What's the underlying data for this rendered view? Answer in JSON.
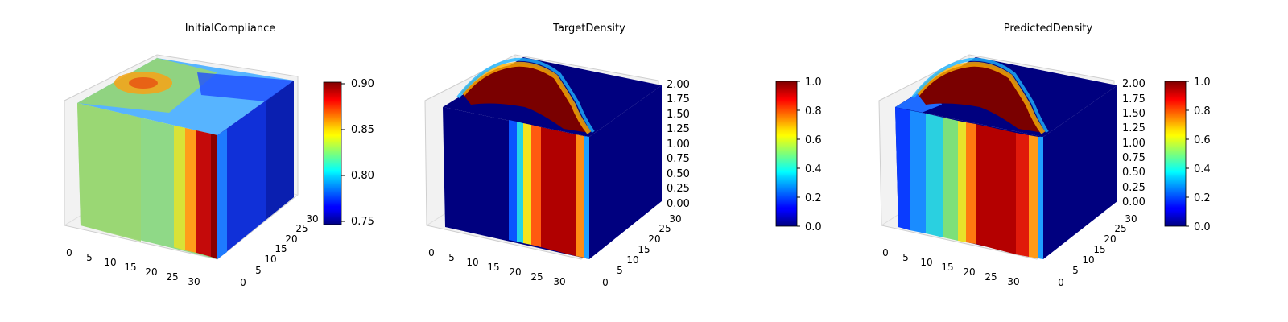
{
  "chart_data": [
    {
      "type": "heatmap",
      "subtype": "3d-voxel",
      "title": "InitialCompliance",
      "x_ticks": [
        "0",
        "5",
        "10",
        "15",
        "20",
        "25",
        "30"
      ],
      "y_ticks": [
        "0",
        "5",
        "10",
        "15",
        "20",
        "25",
        "30"
      ],
      "z_ticks": [],
      "colorbar": {
        "ticks": [
          "0.75",
          "0.80",
          "0.85",
          "0.90"
        ],
        "min": 0.745,
        "max": 0.9,
        "colormap": "jet"
      }
    },
    {
      "type": "heatmap",
      "subtype": "3d-voxel",
      "title": "TargetDensity",
      "x_ticks": [
        "0",
        "5",
        "10",
        "15",
        "20",
        "25",
        "30"
      ],
      "y_ticks": [
        "0",
        "5",
        "10",
        "15",
        "20",
        "25",
        "30"
      ],
      "z_ticks": [
        "0.00",
        "0.25",
        "0.50",
        "0.75",
        "1.00",
        "1.25",
        "1.50",
        "1.75",
        "2.00"
      ],
      "colorbar": {
        "ticks": [
          "0.0",
          "0.2",
          "0.4",
          "0.6",
          "0.8",
          "1.0"
        ],
        "min": 0.0,
        "max": 1.0,
        "colormap": "jet"
      }
    },
    {
      "type": "heatmap",
      "subtype": "3d-voxel",
      "title": "PredictedDensity",
      "x_ticks": [
        "0",
        "5",
        "10",
        "15",
        "20",
        "25",
        "30"
      ],
      "y_ticks": [
        "0",
        "5",
        "10",
        "15",
        "20",
        "25",
        "30"
      ],
      "z_ticks": [
        "0.00",
        "0.25",
        "0.50",
        "0.75",
        "1.00",
        "1.25",
        "1.50",
        "1.75",
        "2.00"
      ],
      "colorbar": {
        "ticks": [
          "0.0",
          "0.2",
          "0.4",
          "0.6",
          "0.8",
          "1.0"
        ],
        "min": 0.0,
        "max": 1.0,
        "colormap": "jet"
      }
    }
  ]
}
